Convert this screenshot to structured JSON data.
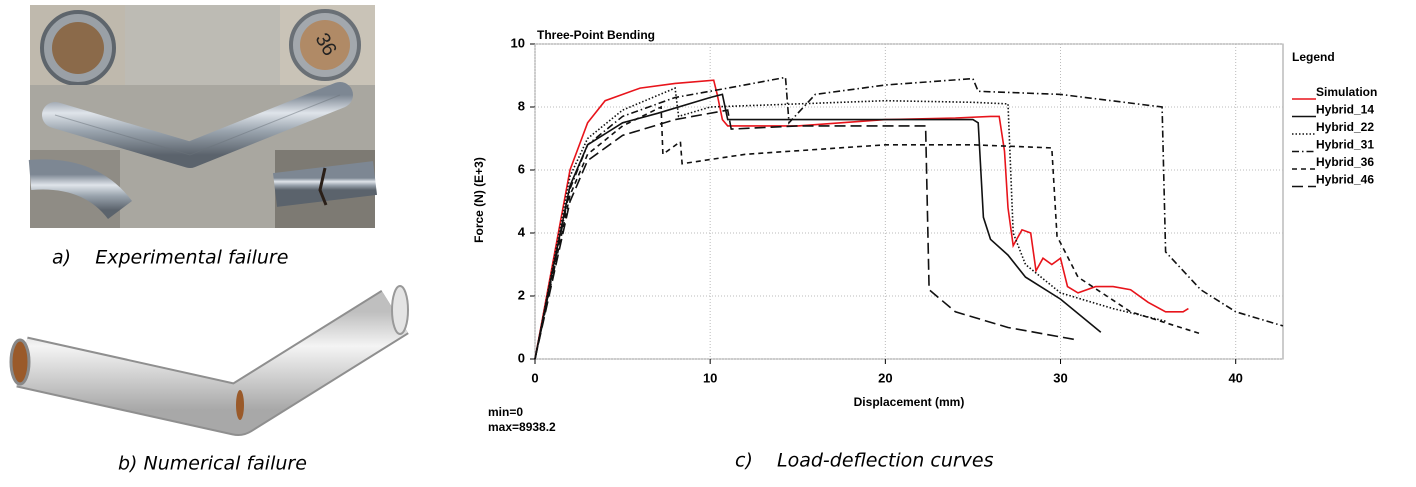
{
  "figure": {
    "captions": {
      "a": "a)    Experimental failure",
      "b": "b) Numerical failure",
      "c": "c)    Load-deflection curves"
    },
    "photo_text": "36"
  },
  "chart_data": {
    "type": "line",
    "title": "Three-Point Bending",
    "xlabel": "Displacement (mm)",
    "ylabel": "Force (N) (E+3)",
    "annotations": [
      "min=0",
      "max=8938.2"
    ],
    "legend_title": "Legend",
    "legend": "right",
    "grid": true,
    "xlim": [
      0,
      42.7
    ],
    "ylim": [
      0,
      10
    ],
    "xticks": [
      0,
      10,
      20,
      30,
      40
    ],
    "yticks": [
      0,
      2,
      4,
      6,
      8,
      10
    ],
    "series": [
      {
        "name": "Simulation",
        "color": "#e8141b",
        "linestyle": "solid",
        "x": [
          0,
          1,
          2,
          3,
          4,
          6,
          8,
          10.2,
          10.4,
          10.7,
          11,
          15,
          20,
          24,
          26,
          26.5,
          26.8,
          27,
          27.3,
          27.8,
          28.3,
          28.6,
          29,
          29.5,
          30,
          30.4,
          31,
          32,
          33,
          34,
          35,
          36,
          37,
          37.3
        ],
        "values": [
          0,
          3,
          6,
          7.5,
          8.2,
          8.6,
          8.75,
          8.85,
          8.4,
          7.6,
          7.4,
          7.4,
          7.6,
          7.65,
          7.7,
          7.7,
          6.6,
          4.8,
          3.6,
          4.1,
          4.0,
          2.8,
          3.2,
          3.0,
          3.2,
          2.3,
          2.1,
          2.3,
          2.3,
          2.2,
          1.8,
          1.5,
          1.5,
          1.6
        ]
      },
      {
        "name": "Hybrid_14",
        "color": "#111111",
        "linestyle": "solid",
        "x": [
          0,
          1,
          2,
          3,
          5,
          7,
          10,
          10.7,
          11,
          14,
          20,
          25,
          25.3,
          25.6,
          26,
          27,
          28,
          30,
          32.3
        ],
        "values": [
          0,
          2.8,
          5.5,
          6.8,
          7.5,
          7.8,
          8.3,
          8.4,
          7.6,
          7.6,
          7.6,
          7.6,
          7.5,
          4.5,
          3.8,
          3.3,
          2.6,
          1.9,
          0.85
        ]
      },
      {
        "name": "Hybrid_22",
        "color": "#111111",
        "linestyle": "dotted",
        "x": [
          0,
          1,
          2,
          3,
          5,
          8,
          8.2,
          10,
          15,
          20,
          25,
          27,
          27.3,
          28,
          30,
          33,
          36
        ],
        "values": [
          0,
          2.9,
          5.8,
          7.0,
          7.9,
          8.6,
          7.7,
          8.0,
          8.1,
          8.2,
          8.15,
          8.1,
          4.0,
          3.0,
          2.1,
          1.6,
          1.2
        ]
      },
      {
        "name": "Hybrid_31",
        "color": "#111111",
        "linestyle": "dashdot",
        "x": [
          0,
          1,
          2,
          3,
          5,
          8,
          11,
          14.3,
          14.5,
          16,
          20,
          25,
          25.3,
          30,
          35.8,
          36,
          38,
          40,
          42.7
        ],
        "values": [
          0,
          2.7,
          5.4,
          6.8,
          7.7,
          8.3,
          8.6,
          8.94,
          7.5,
          8.4,
          8.7,
          8.9,
          8.5,
          8.4,
          8.0,
          3.4,
          2.2,
          1.5,
          1.05
        ]
      },
      {
        "name": "Hybrid_36",
        "color": "#111111",
        "linestyle": "dashed",
        "x": [
          0,
          1,
          2,
          3,
          5,
          7.2,
          7.3,
          8.3,
          8.4,
          12,
          20,
          25,
          29.5,
          29.8,
          31,
          34,
          38
        ],
        "values": [
          0,
          2.6,
          5.2,
          6.5,
          7.4,
          8.0,
          6.5,
          6.9,
          6.2,
          6.5,
          6.8,
          6.8,
          6.7,
          3.9,
          2.6,
          1.5,
          0.8
        ]
      },
      {
        "name": "Hybrid_46",
        "color": "#111111",
        "linestyle": "longdash",
        "x": [
          0,
          1,
          2,
          3,
          5,
          8,
          11,
          11.2,
          15,
          20,
          22.3,
          22.5,
          24,
          27,
          31
        ],
        "values": [
          0,
          2.5,
          5.0,
          6.3,
          7.1,
          7.6,
          7.9,
          7.3,
          7.4,
          7.4,
          7.4,
          2.2,
          1.5,
          1.0,
          0.6
        ]
      }
    ]
  }
}
